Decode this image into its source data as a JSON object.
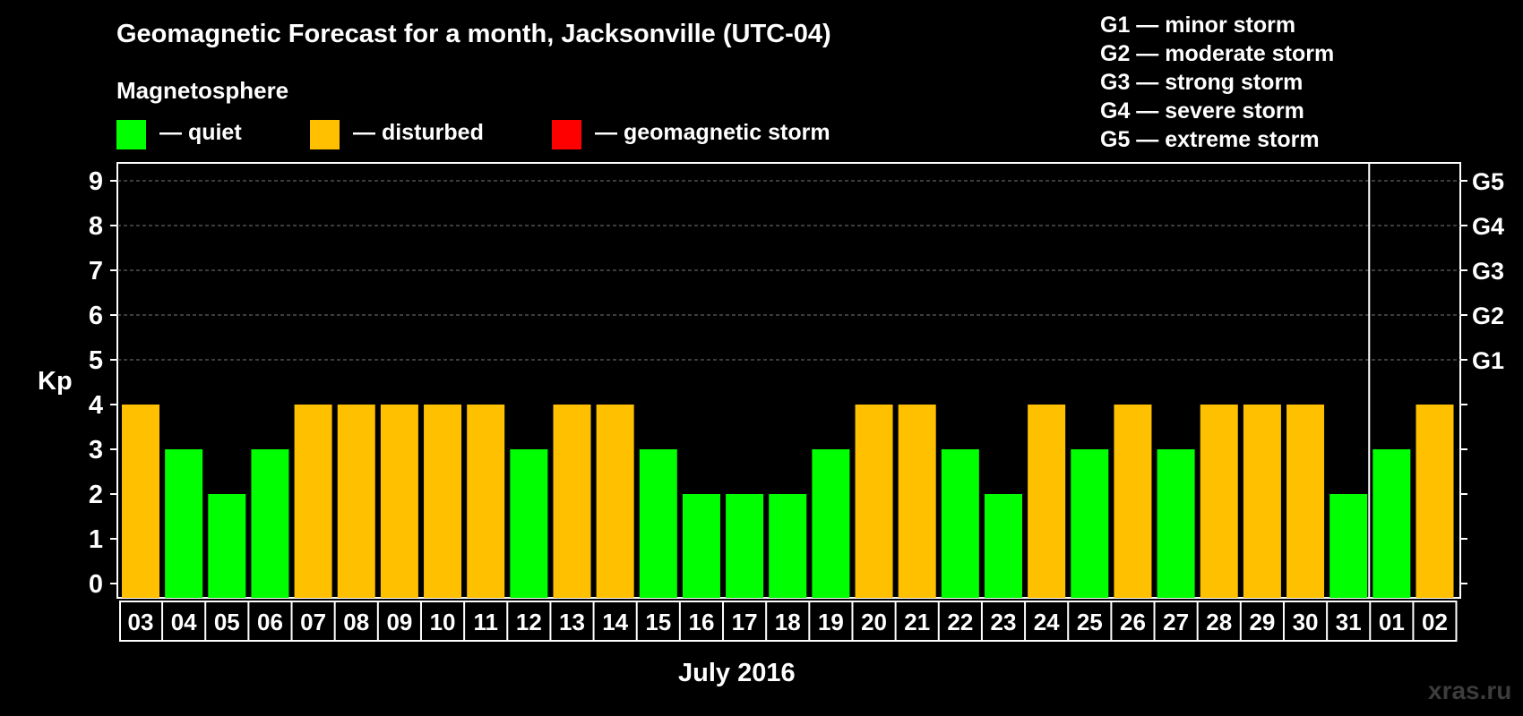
{
  "title": "Geomagnetic Forecast for a month, Jacksonville (UTC-04)",
  "legend": {
    "heading": "Magnetosphere",
    "items": [
      {
        "label": "— quiet",
        "color": "#00ff00"
      },
      {
        "label": "— disturbed",
        "color": "#ffc000"
      },
      {
        "label": "— geomagnetic storm",
        "color": "#ff0000"
      }
    ]
  },
  "storm_scale": [
    "G1 — minor storm",
    "G2 — moderate storm",
    "G3 — strong storm",
    "G4 — severe storm",
    "G5 — extreme storm"
  ],
  "watermark": "xras.ru",
  "chart_data": {
    "type": "bar",
    "title": "Geomagnetic Forecast for a month, Jacksonville (UTC-04)",
    "xlabel": "July 2016",
    "ylabel": "Kp",
    "ylim": [
      0,
      9
    ],
    "yticks": [
      "0",
      "1",
      "2",
      "3",
      "4",
      "5",
      "6",
      "7",
      "8",
      "9"
    ],
    "right_ticks": [
      {
        "value": 5,
        "label": "G1"
      },
      {
        "value": 6,
        "label": "G2"
      },
      {
        "value": 7,
        "label": "G3"
      },
      {
        "value": 8,
        "label": "G4"
      },
      {
        "value": 9,
        "label": "G5"
      }
    ],
    "grid": "dashed horizontal at 5-9",
    "categories": [
      "03",
      "04",
      "05",
      "06",
      "07",
      "08",
      "09",
      "10",
      "11",
      "12",
      "13",
      "14",
      "15",
      "16",
      "17",
      "18",
      "19",
      "20",
      "21",
      "22",
      "23",
      "24",
      "25",
      "26",
      "27",
      "28",
      "29",
      "30",
      "31",
      "01",
      "02"
    ],
    "values": [
      4,
      3,
      2,
      3,
      4,
      4,
      4,
      4,
      4,
      3,
      4,
      4,
      3,
      2,
      2,
      2,
      3,
      4,
      4,
      3,
      2,
      4,
      3,
      4,
      3,
      4,
      4,
      4,
      2,
      3,
      4
    ],
    "month_divider_after": "31",
    "colors": {
      "quiet": "#00ff00",
      "disturbed": "#ffc000",
      "storm": "#ff0000"
    }
  }
}
